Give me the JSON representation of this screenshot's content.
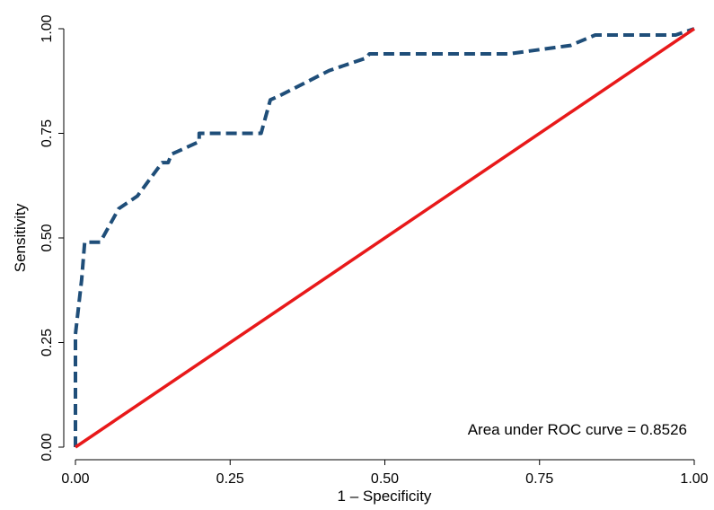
{
  "chart_data": {
    "type": "line",
    "title": "",
    "xlabel": "1 – Specificity",
    "ylabel": "Sensitivity",
    "xlim": [
      0,
      1
    ],
    "ylim": [
      0,
      1
    ],
    "xticks": [
      "0.00",
      "0.25",
      "0.50",
      "0.75",
      "1.00"
    ],
    "yticks": [
      "0.00",
      "0.25",
      "0.50",
      "0.75",
      "1.00"
    ],
    "grid": false,
    "annotation": "Area under ROC curve = 0.8526",
    "series": [
      {
        "style": "dashed",
        "color": "#1f4e79",
        "points": [
          [
            0.0,
            0.0
          ],
          [
            0.0,
            0.27
          ],
          [
            0.01,
            0.4
          ],
          [
            0.015,
            0.49
          ],
          [
            0.04,
            0.49
          ],
          [
            0.07,
            0.57
          ],
          [
            0.1,
            0.6
          ],
          [
            0.14,
            0.68
          ],
          [
            0.15,
            0.68
          ],
          [
            0.155,
            0.7
          ],
          [
            0.2,
            0.73
          ],
          [
            0.2,
            0.75
          ],
          [
            0.3,
            0.75
          ],
          [
            0.315,
            0.83
          ],
          [
            0.33,
            0.84
          ],
          [
            0.41,
            0.9
          ],
          [
            0.47,
            0.93
          ],
          [
            0.475,
            0.94
          ],
          [
            0.7,
            0.94
          ],
          [
            0.8,
            0.96
          ],
          [
            0.84,
            0.985
          ],
          [
            0.97,
            0.985
          ],
          [
            1.0,
            1.0
          ]
        ]
      },
      {
        "style": "solid",
        "color": "#e8191a",
        "points": [
          [
            0,
            0
          ],
          [
            1,
            1
          ]
        ]
      }
    ]
  }
}
